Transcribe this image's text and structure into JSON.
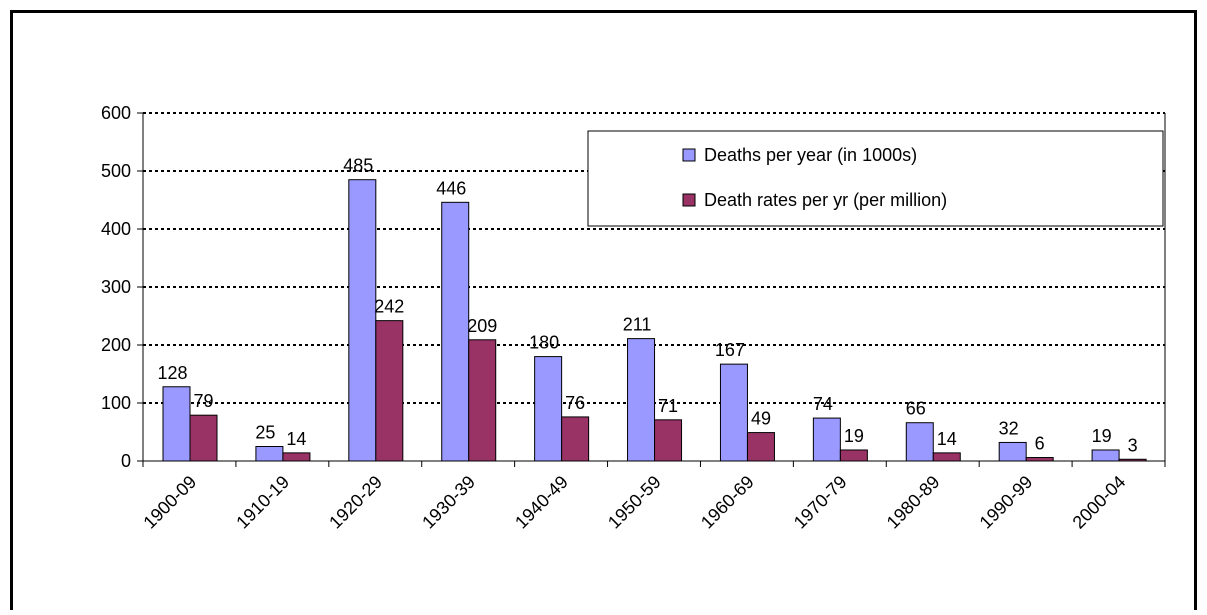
{
  "chart_data": {
    "type": "bar",
    "categories": [
      "1900-09",
      "1910-19",
      "1920-29",
      "1930-39",
      "1940-49",
      "1950-59",
      "1960-69",
      "1970-79",
      "1980-89",
      "1990-99",
      "2000-04"
    ],
    "series": [
      {
        "name": "Deaths per year (in 1000s)",
        "color": "#9999ff",
        "values": [
          128,
          25,
          485,
          446,
          180,
          211,
          167,
          74,
          66,
          32,
          19
        ]
      },
      {
        "name": "Death rates per yr (per million)",
        "color": "#993366",
        "values": [
          79,
          14,
          242,
          209,
          76,
          71,
          49,
          19,
          14,
          6,
          3
        ]
      }
    ],
    "ylim": [
      0,
      600
    ],
    "yticks": [
      0,
      100,
      200,
      300,
      400,
      500,
      600
    ],
    "grid": true,
    "legend": "top-right"
  }
}
